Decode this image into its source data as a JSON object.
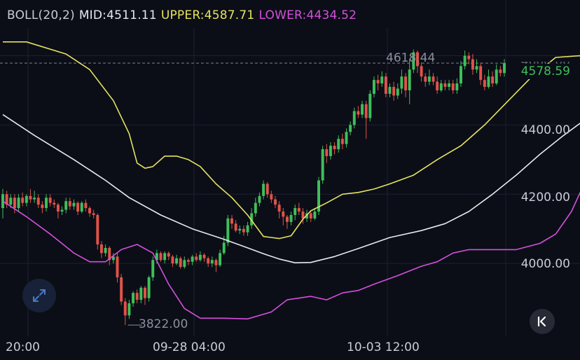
{
  "legend": {
    "indicator": "BOLL(20,2)",
    "mid_label": "MID:",
    "mid_value": "4511.11",
    "upper_label": "UPPER:",
    "upper_value": "4587.71",
    "lower_label": "LOWER:",
    "lower_value": "4434.52"
  },
  "colors": {
    "background": "#0b0e17",
    "up": "#3fbf5a",
    "down": "#e0534a",
    "mid": "#e8e8ee",
    "upper": "#e6e260",
    "lower": "#d54fdc",
    "grid": "#1c2130"
  },
  "price_axis": {
    "partial_top": "4600.00",
    "ticks": [
      "4400.00",
      "4200.00",
      "4000.00"
    ],
    "last_price": "4578.59"
  },
  "time_axis": {
    "labels": [
      "20:00",
      "09-28 04:00",
      "10-03 12:00"
    ]
  },
  "annotations": {
    "high": "4618.44",
    "low": "3822.00"
  },
  "controls": {
    "expand_icon": "expand-arrows-icon",
    "collapse_icon": "chevron-left-bar-icon"
  },
  "chart_data": {
    "type": "candlestick",
    "y_range": [
      3790,
      4680
    ],
    "x_labels": [
      "20:00",
      "09-28 04:00",
      "10-03 12:00"
    ],
    "high": 4618.44,
    "low": 3822.0,
    "last": 4578.59,
    "candles": [
      [
        4160,
        4200,
        4130,
        4215
      ],
      [
        4200,
        4170,
        4160,
        4210
      ],
      [
        4170,
        4190,
        4160,
        4200
      ],
      [
        4190,
        4160,
        4145,
        4200
      ],
      [
        4160,
        4190,
        4150,
        4200
      ],
      [
        4190,
        4175,
        4165,
        4205
      ],
      [
        4175,
        4195,
        4165,
        4200
      ],
      [
        4195,
        4185,
        4175,
        4215
      ],
      [
        4185,
        4190,
        4175,
        4210
      ],
      [
        4190,
        4170,
        4160,
        4200
      ],
      [
        4170,
        4160,
        4145,
        4180
      ],
      [
        4160,
        4190,
        4150,
        4200
      ],
      [
        4190,
        4175,
        4165,
        4200
      ],
      [
        4175,
        4170,
        4160,
        4185
      ],
      [
        4170,
        4150,
        4130,
        4175
      ],
      [
        4150,
        4155,
        4140,
        4165
      ],
      [
        4155,
        4180,
        4145,
        4190
      ],
      [
        4180,
        4165,
        4155,
        4190
      ],
      [
        4165,
        4175,
        4155,
        4185
      ],
      [
        4175,
        4150,
        4140,
        4180
      ],
      [
        4150,
        4175,
        4145,
        4180
      ],
      [
        4175,
        4160,
        4150,
        4185
      ],
      [
        4160,
        4145,
        4135,
        4165
      ],
      [
        4145,
        4140,
        4130,
        4155
      ],
      [
        4140,
        4055,
        4040,
        4145
      ],
      [
        4055,
        4030,
        4015,
        4065
      ],
      [
        4030,
        4045,
        4020,
        4055
      ],
      [
        4045,
        4010,
        3995,
        4050
      ],
      [
        4010,
        4020,
        4000,
        4030
      ],
      [
        4020,
        3960,
        3945,
        4030
      ],
      [
        3960,
        3890,
        3880,
        3970
      ],
      [
        3890,
        3850,
        3822,
        3900
      ],
      [
        3850,
        3885,
        3840,
        3895
      ],
      [
        3885,
        3915,
        3875,
        3920
      ],
      [
        3915,
        3895,
        3885,
        3925
      ],
      [
        3895,
        3930,
        3885,
        3935
      ],
      [
        3930,
        3900,
        3880,
        3935
      ],
      [
        3900,
        3960,
        3890,
        3965
      ],
      [
        3960,
        4010,
        3950,
        4020
      ],
      [
        4010,
        4030,
        4000,
        4040
      ],
      [
        4030,
        4010,
        4005,
        4035
      ],
      [
        4010,
        4030,
        4000,
        4035
      ],
      [
        4030,
        4020,
        4010,
        4035
      ],
      [
        4020,
        4000,
        3990,
        4025
      ],
      [
        4000,
        4015,
        3995,
        4025
      ],
      [
        4015,
        3990,
        3985,
        4020
      ],
      [
        3990,
        4010,
        3985,
        4020
      ],
      [
        4010,
        4005,
        3995,
        4015
      ],
      [
        4005,
        4020,
        3995,
        4025
      ],
      [
        4020,
        4010,
        4005,
        4030
      ],
      [
        4010,
        4025,
        4005,
        4035
      ],
      [
        4025,
        4015,
        4005,
        4030
      ],
      [
        4015,
        4000,
        3990,
        4020
      ],
      [
        4000,
        4010,
        3990,
        4020
      ],
      [
        4010,
        3995,
        3975,
        4015
      ],
      [
        3995,
        4030,
        3990,
        4040
      ],
      [
        4030,
        4060,
        4025,
        4080
      ],
      [
        4060,
        4130,
        4050,
        4140
      ],
      [
        4130,
        4115,
        4100,
        4140
      ],
      [
        4115,
        4095,
        4090,
        4125
      ],
      [
        4095,
        4100,
        4085,
        4110
      ],
      [
        4100,
        4090,
        4080,
        4110
      ],
      [
        4090,
        4110,
        4080,
        4120
      ],
      [
        4110,
        4145,
        4100,
        4160
      ],
      [
        4145,
        4175,
        4135,
        4190
      ],
      [
        4175,
        4195,
        4165,
        4205
      ],
      [
        4195,
        4230,
        4185,
        4240
      ],
      [
        4230,
        4200,
        4190,
        4235
      ],
      [
        4200,
        4185,
        4175,
        4210
      ],
      [
        4185,
        4170,
        4160,
        4195
      ],
      [
        4170,
        4150,
        4130,
        4180
      ],
      [
        4150,
        4135,
        4110,
        4160
      ],
      [
        4135,
        4120,
        4100,
        4140
      ],
      [
        4120,
        4140,
        4110,
        4150
      ],
      [
        4140,
        4160,
        4125,
        4170
      ],
      [
        4160,
        4150,
        4140,
        4175
      ],
      [
        4150,
        4130,
        4115,
        4160
      ],
      [
        4130,
        4145,
        4120,
        4155
      ],
      [
        4145,
        4130,
        4120,
        4150
      ],
      [
        4130,
        4150,
        4125,
        4160
      ],
      [
        4150,
        4240,
        4140,
        4250
      ],
      [
        4240,
        4330,
        4230,
        4340
      ],
      [
        4330,
        4310,
        4290,
        4345
      ],
      [
        4310,
        4340,
        4300,
        4350
      ],
      [
        4340,
        4330,
        4315,
        4350
      ],
      [
        4330,
        4360,
        4320,
        4370
      ],
      [
        4360,
        4345,
        4330,
        4375
      ],
      [
        4345,
        4380,
        4335,
        4390
      ],
      [
        4380,
        4400,
        4370,
        4410
      ],
      [
        4400,
        4440,
        4390,
        4450
      ],
      [
        4440,
        4430,
        4420,
        4455
      ],
      [
        4430,
        4460,
        4420,
        4470
      ],
      [
        4460,
        4420,
        4360,
        4470
      ],
      [
        4420,
        4490,
        4410,
        4500
      ],
      [
        4490,
        4530,
        4480,
        4540
      ],
      [
        4530,
        4520,
        4500,
        4545
      ],
      [
        4520,
        4540,
        4510,
        4555
      ],
      [
        4540,
        4490,
        4480,
        4550
      ],
      [
        4490,
        4510,
        4480,
        4520
      ],
      [
        4510,
        4485,
        4470,
        4525
      ],
      [
        4485,
        4505,
        4475,
        4520
      ],
      [
        4505,
        4540,
        4490,
        4560
      ],
      [
        4540,
        4500,
        4480,
        4550
      ],
      [
        4500,
        4560,
        4460,
        4590
      ],
      [
        4560,
        4610,
        4550,
        4618
      ],
      [
        4610,
        4570,
        4550,
        4615
      ],
      [
        4570,
        4540,
        4525,
        4580
      ],
      [
        4540,
        4525,
        4510,
        4550
      ],
      [
        4525,
        4540,
        4515,
        4560
      ],
      [
        4540,
        4525,
        4515,
        4550
      ],
      [
        4525,
        4500,
        4490,
        4540
      ],
      [
        4500,
        4520,
        4495,
        4530
      ],
      [
        4520,
        4510,
        4500,
        4530
      ],
      [
        4510,
        4520,
        4500,
        4530
      ],
      [
        4520,
        4500,
        4490,
        4530
      ],
      [
        4500,
        4520,
        4490,
        4535
      ],
      [
        4520,
        4570,
        4510,
        4585
      ],
      [
        4570,
        4600,
        4560,
        4615
      ],
      [
        4600,
        4590,
        4575,
        4610
      ],
      [
        4590,
        4560,
        4545,
        4605
      ],
      [
        4560,
        4570,
        4550,
        4590
      ],
      [
        4570,
        4530,
        4515,
        4580
      ],
      [
        4530,
        4510,
        4500,
        4545
      ],
      [
        4510,
        4540,
        4505,
        4560
      ],
      [
        4540,
        4520,
        4510,
        4555
      ],
      [
        4520,
        4560,
        4515,
        4575
      ],
      [
        4560,
        4550,
        4540,
        4570
      ],
      [
        4550,
        4578.59,
        4540,
        4590
      ]
    ],
    "upper_band": [
      [
        0,
        4640
      ],
      [
        6,
        4640
      ],
      [
        16,
        4605
      ],
      [
        22,
        4560
      ],
      [
        28,
        4470
      ],
      [
        32,
        4375
      ],
      [
        34,
        4290
      ],
      [
        36,
        4275
      ],
      [
        38,
        4280
      ],
      [
        41,
        4310
      ],
      [
        44,
        4310
      ],
      [
        47,
        4300
      ],
      [
        50,
        4280
      ],
      [
        54,
        4230
      ],
      [
        58,
        4190
      ],
      [
        62,
        4140
      ],
      [
        66,
        4078
      ],
      [
        70,
        4072
      ],
      [
        73,
        4080
      ],
      [
        76,
        4128
      ],
      [
        78,
        4152
      ],
      [
        82,
        4175
      ],
      [
        86,
        4200
      ],
      [
        90,
        4205
      ],
      [
        94,
        4215
      ],
      [
        98,
        4230
      ],
      [
        104,
        4255
      ],
      [
        110,
        4300
      ],
      [
        116,
        4340
      ],
      [
        122,
        4400
      ],
      [
        128,
        4470
      ],
      [
        134,
        4540
      ],
      [
        140,
        4595
      ],
      [
        146,
        4600
      ],
      [
        150,
        4596
      ],
      [
        154,
        4578
      ],
      [
        158,
        4572
      ],
      [
        160,
        4585
      ],
      [
        163,
        4598
      ],
      [
        166,
        4585
      ],
      [
        170,
        4578
      ],
      [
        174,
        4580
      ],
      [
        176,
        4588
      ]
    ],
    "mid_band": [
      [
        0,
        4430
      ],
      [
        8,
        4370
      ],
      [
        18,
        4300
      ],
      [
        26,
        4240
      ],
      [
        32,
        4190
      ],
      [
        40,
        4140
      ],
      [
        48,
        4100
      ],
      [
        56,
        4070
      ],
      [
        62,
        4045
      ],
      [
        66,
        4028
      ],
      [
        70,
        4013
      ],
      [
        74,
        4002
      ],
      [
        78,
        4003
      ],
      [
        84,
        4020
      ],
      [
        90,
        4043
      ],
      [
        98,
        4075
      ],
      [
        106,
        4095
      ],
      [
        112,
        4115
      ],
      [
        118,
        4150
      ],
      [
        124,
        4200
      ],
      [
        130,
        4255
      ],
      [
        136,
        4315
      ],
      [
        142,
        4370
      ],
      [
        148,
        4420
      ],
      [
        152,
        4455
      ],
      [
        158,
        4465
      ],
      [
        164,
        4485
      ],
      [
        170,
        4500
      ],
      [
        176,
        4511
      ]
    ],
    "lower_band": [
      [
        0,
        4180
      ],
      [
        6,
        4135
      ],
      [
        12,
        4085
      ],
      [
        18,
        4030
      ],
      [
        22,
        4005
      ],
      [
        26,
        4005
      ],
      [
        30,
        4040
      ],
      [
        34,
        4055
      ],
      [
        38,
        4030
      ],
      [
        42,
        3940
      ],
      [
        46,
        3870
      ],
      [
        50,
        3842
      ],
      [
        56,
        3842
      ],
      [
        62,
        3840
      ],
      [
        68,
        3860
      ],
      [
        72,
        3895
      ],
      [
        78,
        3905
      ],
      [
        82,
        3895
      ],
      [
        86,
        3915
      ],
      [
        90,
        3922
      ],
      [
        94,
        3940
      ],
      [
        100,
        3965
      ],
      [
        106,
        3992
      ],
      [
        110,
        4005
      ],
      [
        114,
        4030
      ],
      [
        118,
        4040
      ],
      [
        124,
        4040
      ],
      [
        130,
        4040
      ],
      [
        136,
        4058
      ],
      [
        140,
        4085
      ],
      [
        144,
        4150
      ],
      [
        148,
        4250
      ],
      [
        152,
        4335
      ],
      [
        156,
        4360
      ],
      [
        160,
        4385
      ],
      [
        164,
        4410
      ],
      [
        168,
        4430
      ],
      [
        172,
        4436
      ],
      [
        176,
        4434
      ]
    ]
  }
}
